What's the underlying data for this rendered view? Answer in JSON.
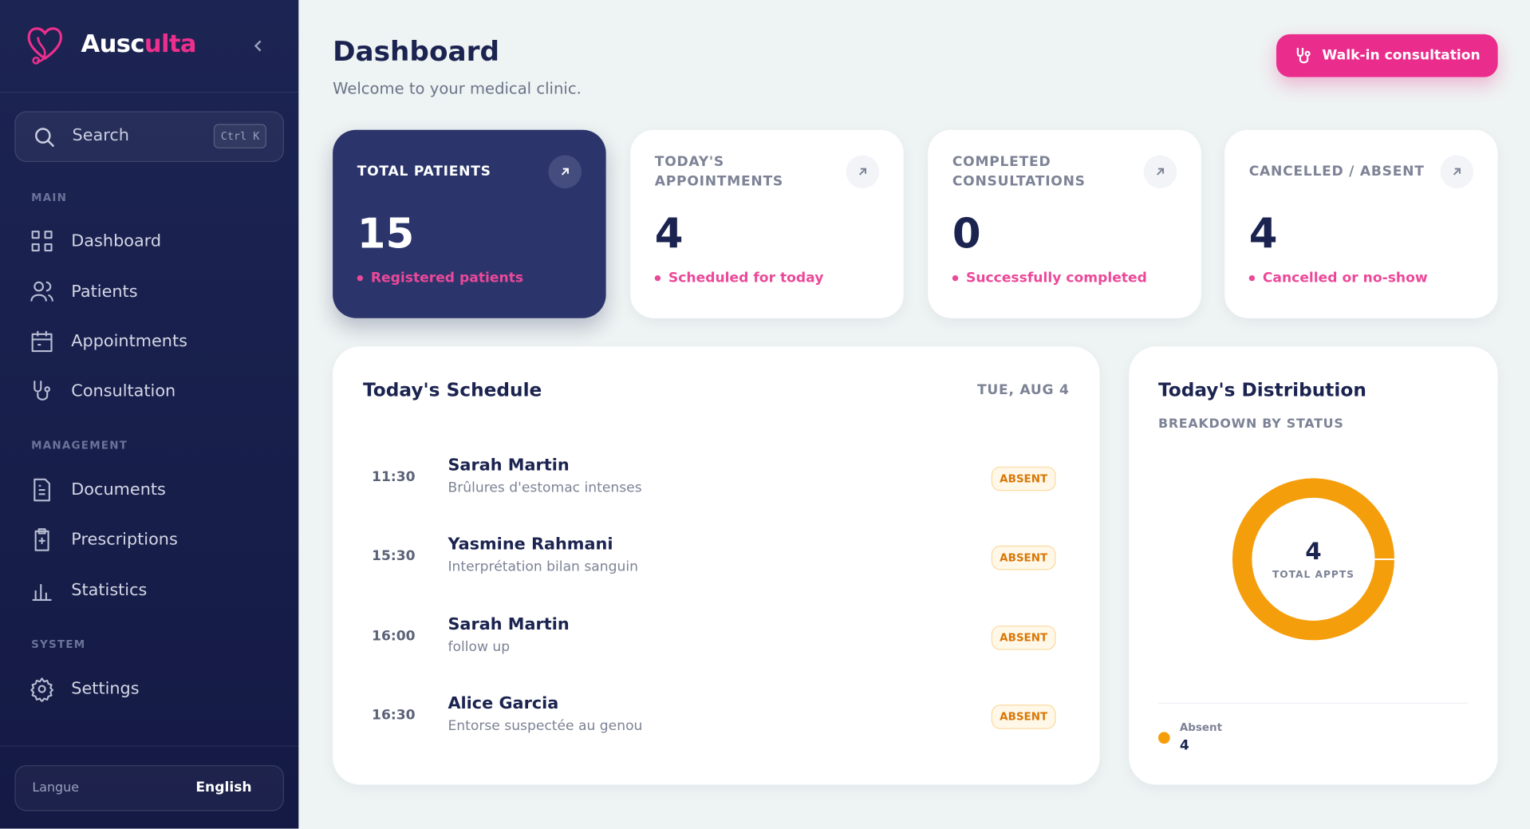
{
  "sidebar": {
    "brand_prefix": "Ausc",
    "brand_suffix": "ulta",
    "search": {
      "placeholder": "Search",
      "shortcut": "Ctrl K"
    },
    "sections": [
      {
        "title": "MAIN",
        "items": [
          "Dashboard",
          "Patients",
          "Appointments",
          "Consultation"
        ]
      },
      {
        "title": "MANAGEMENT",
        "items": [
          "Documents",
          "Prescriptions",
          "Statistics"
        ]
      },
      {
        "title": "SYSTEM",
        "items": [
          "Settings"
        ]
      }
    ],
    "language": {
      "label": "Langue",
      "value": "English"
    }
  },
  "header": {
    "title": "Dashboard",
    "subtitle": "Welcome to your medical clinic.",
    "action": "Walk-in consultation"
  },
  "stats": [
    {
      "label": "TOTAL PATIENTS",
      "value": 15,
      "note": "Registered patients"
    },
    {
      "label": "TODAY'S APPOINTMENTS",
      "value": 4,
      "note": "Scheduled for today"
    },
    {
      "label": "COMPLETED CONSULTATIONS",
      "value": 0,
      "note": "Successfully completed"
    },
    {
      "label": "CANCELLED / ABSENT",
      "value": 4,
      "note": "Cancelled or no-show"
    }
  ],
  "schedule": {
    "title": "Today's Schedule",
    "date": "TUE, AUG 4",
    "rows": [
      {
        "time": "11:30",
        "name": "Sarah Martin",
        "reason": "Brûlures d'estomac intenses",
        "status": "ABSENT"
      },
      {
        "time": "15:30",
        "name": "Yasmine Rahmani",
        "reason": "Interprétation bilan sanguin",
        "status": "ABSENT"
      },
      {
        "time": "16:00",
        "name": "Sarah Martin",
        "reason": "follow up",
        "status": "ABSENT"
      },
      {
        "time": "16:30",
        "name": "Alice Garcia",
        "reason": "Entorse suspectée au genou",
        "status": "ABSENT"
      }
    ]
  },
  "distribution": {
    "title": "Today's Distribution",
    "subtitle": "BREAKDOWN BY STATUS",
    "total": 4,
    "total_label": "TOTAL APPTS",
    "segments": [
      {
        "name": "Absent",
        "value": 4,
        "color": "#f59e0b"
      }
    ]
  }
}
